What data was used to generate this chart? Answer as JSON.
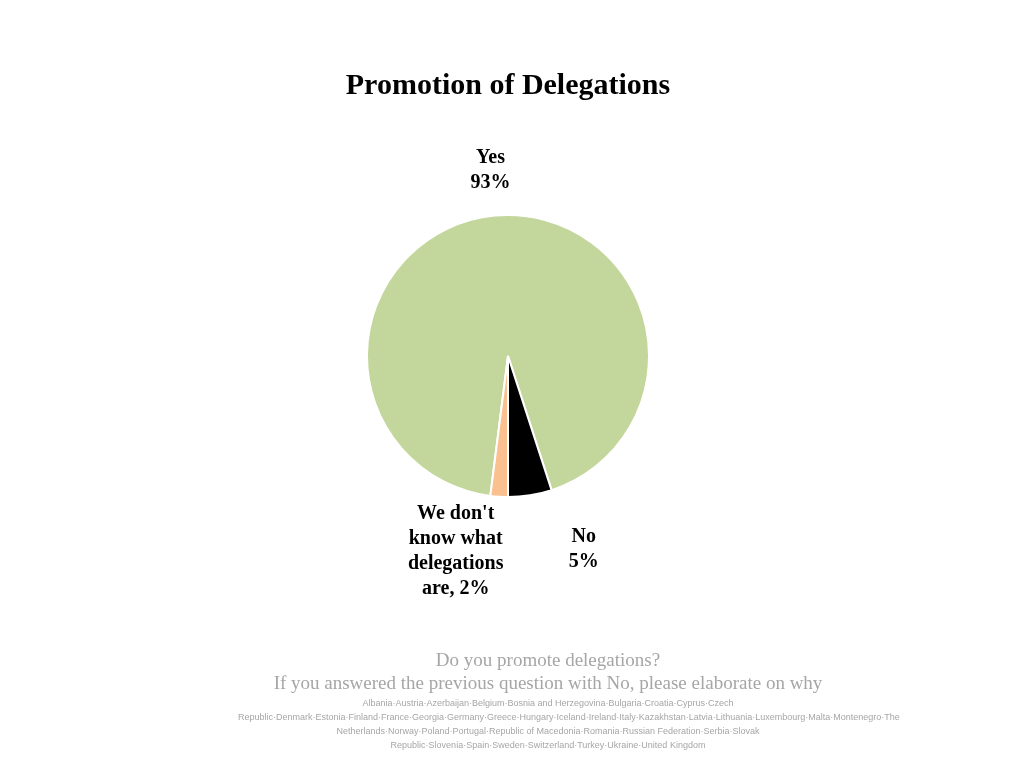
{
  "chart_data": {
    "type": "pie",
    "title": "Promotion of Delegations",
    "categories": [
      "Yes",
      "No",
      "We don't know what delegations are"
    ],
    "value_labels": [
      "93%",
      "5%",
      "2%"
    ],
    "values": [
      93,
      5,
      2
    ],
    "colors": [
      "#c3d69b",
      "#000000",
      "#fac090"
    ],
    "legend": false,
    "annotations": [
      "Do you promote delegations?",
      "If you answered the previous question with No, please elaborate on why",
      "Albania·Austria·Azerbaijan·Belgium·Bosnia and Herzegovina·Bulgaria·Croatia·Cyprus·Czech Republic·Denmark·Estonia·Finland·France·Georgia·Germany·Greece·Hungary·Iceland·Ireland·Italy·Kazakhstan·Latvia·Lithuania·Luxembourg·Malta·Montenegro·The Netherlands·Norway·Poland·Portugal·Republic of Macedonia·Romania·Russian Federation·Serbia·Slovak Republic·Slovenia·Spain·Sweden·Switzerland·Turkey·Ukraine·United Kingdom"
    ]
  }
}
